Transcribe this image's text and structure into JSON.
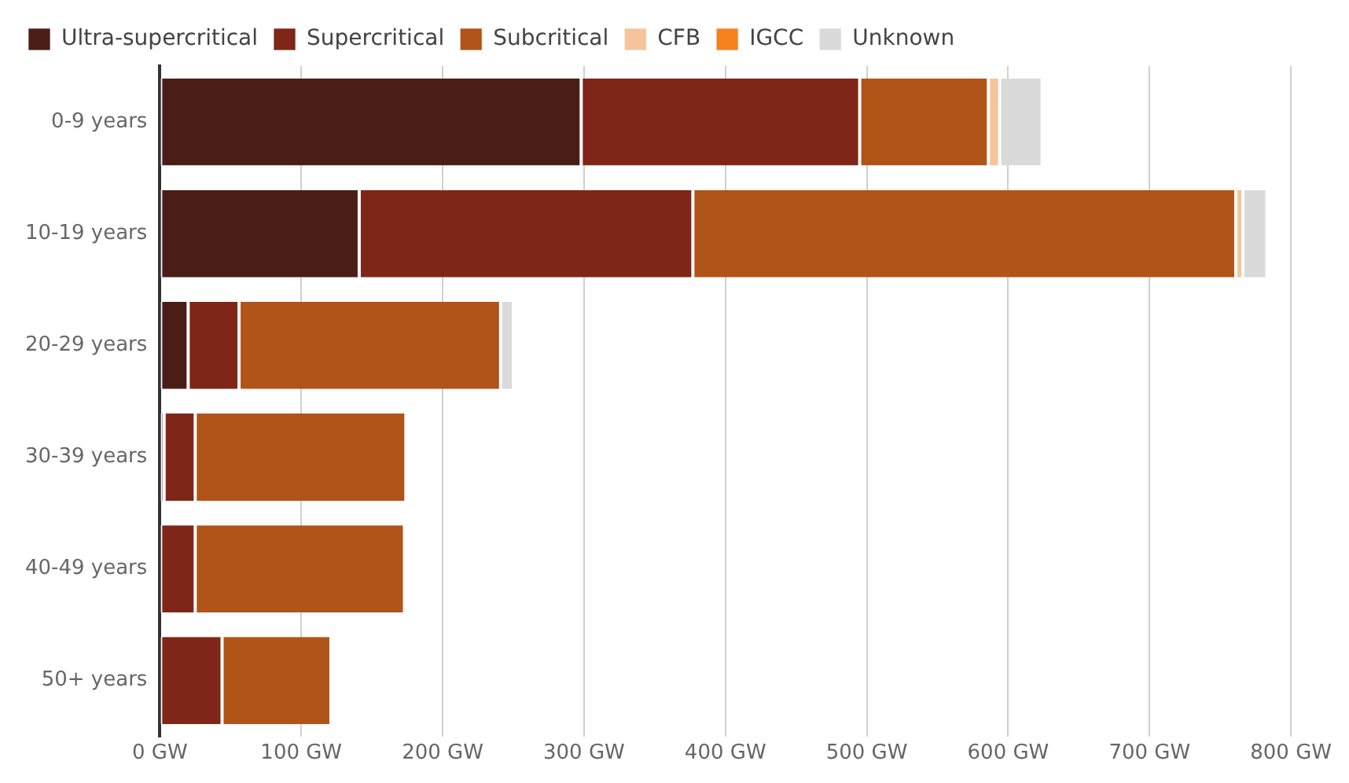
{
  "chart_data": {
    "type": "bar",
    "orientation": "horizontal",
    "stacked": true,
    "categories": [
      "0-9 years",
      "10-19 years",
      "20-29 years",
      "30-39 years",
      "40-49 years",
      "50+ years"
    ],
    "series": [
      {
        "name": "Ultra-supercritical",
        "color": "#4a1e17",
        "values": [
          298,
          141,
          20,
          3,
          null,
          null
        ]
      },
      {
        "name": "Supercritical",
        "color": "#7f2618",
        "values": [
          197,
          236,
          36,
          22,
          25,
          44
        ]
      },
      {
        "name": "Subcritical",
        "color": "#b05418",
        "values": [
          91,
          384,
          185,
          149,
          148,
          77
        ]
      },
      {
        "name": "CFB",
        "color": "#f5c49b",
        "values": [
          8,
          5,
          null,
          null,
          null,
          null
        ]
      },
      {
        "name": "IGCC",
        "color": "#f5821f",
        "values": [
          null,
          null,
          null,
          null,
          null,
          null
        ]
      },
      {
        "name": "Unknown",
        "color": "#dadada",
        "values": [
          30,
          17,
          9,
          null,
          null,
          null
        ]
      }
    ],
    "xlim": [
      0,
      800
    ],
    "xticks": [
      {
        "value": 0,
        "label": "0 GW"
      },
      {
        "value": 100,
        "label": "100 GW"
      },
      {
        "value": 200,
        "label": "200 GW"
      },
      {
        "value": 300,
        "label": "300 GW"
      },
      {
        "value": 400,
        "label": "400 GW"
      },
      {
        "value": 500,
        "label": "500 GW"
      },
      {
        "value": 600,
        "label": "600 GW"
      },
      {
        "value": 700,
        "label": "700 GW"
      },
      {
        "value": 800,
        "label": "800 GW"
      }
    ],
    "grid": "x",
    "legend": "top left"
  }
}
